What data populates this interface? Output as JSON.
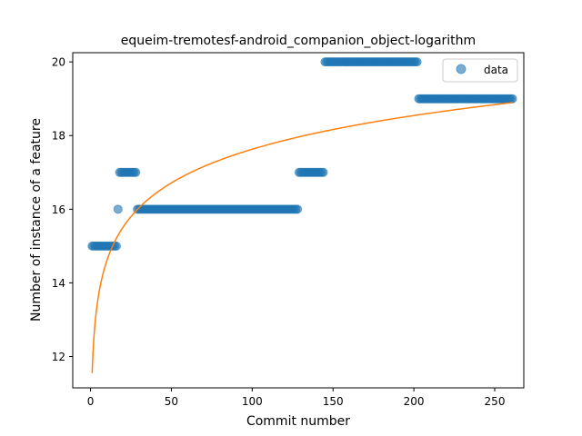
{
  "chart_data": {
    "type": "scatter",
    "title": "equeim-tremotesf-android_companion_object-logarithm",
    "xlabel": "Commit number",
    "ylabel": "Number of instance of a feature",
    "xlim": [
      -11,
      268
    ],
    "ylim": [
      11.15,
      20.25
    ],
    "xticks": [
      0,
      50,
      100,
      150,
      200,
      250
    ],
    "yticks": [
      12,
      14,
      16,
      18,
      20
    ],
    "legend": {
      "position": "top-right",
      "entries": [
        "data"
      ]
    },
    "colors": {
      "data": "#1f77b4",
      "fit": "#ff7f0e"
    },
    "grid": false,
    "series": [
      {
        "name": "data",
        "kind": "scatter",
        "segments": [
          {
            "x_start": 1,
            "x_end": 16,
            "y": 15
          },
          {
            "x_start": 17,
            "x_end": 17,
            "y": 16
          },
          {
            "x_start": 18,
            "x_end": 28,
            "y": 17
          },
          {
            "x_start": 29,
            "x_end": 128,
            "y": 16
          },
          {
            "x_start": 129,
            "x_end": 144,
            "y": 17
          },
          {
            "x_start": 145,
            "x_end": 202,
            "y": 20
          },
          {
            "x_start": 203,
            "x_end": 261,
            "y": 19
          }
        ]
      },
      {
        "kind": "line",
        "fit": {
          "model": "logarithm",
          "a": 11.55,
          "b": 1.32,
          "x_start": 1,
          "x_end": 261
        }
      }
    ]
  }
}
